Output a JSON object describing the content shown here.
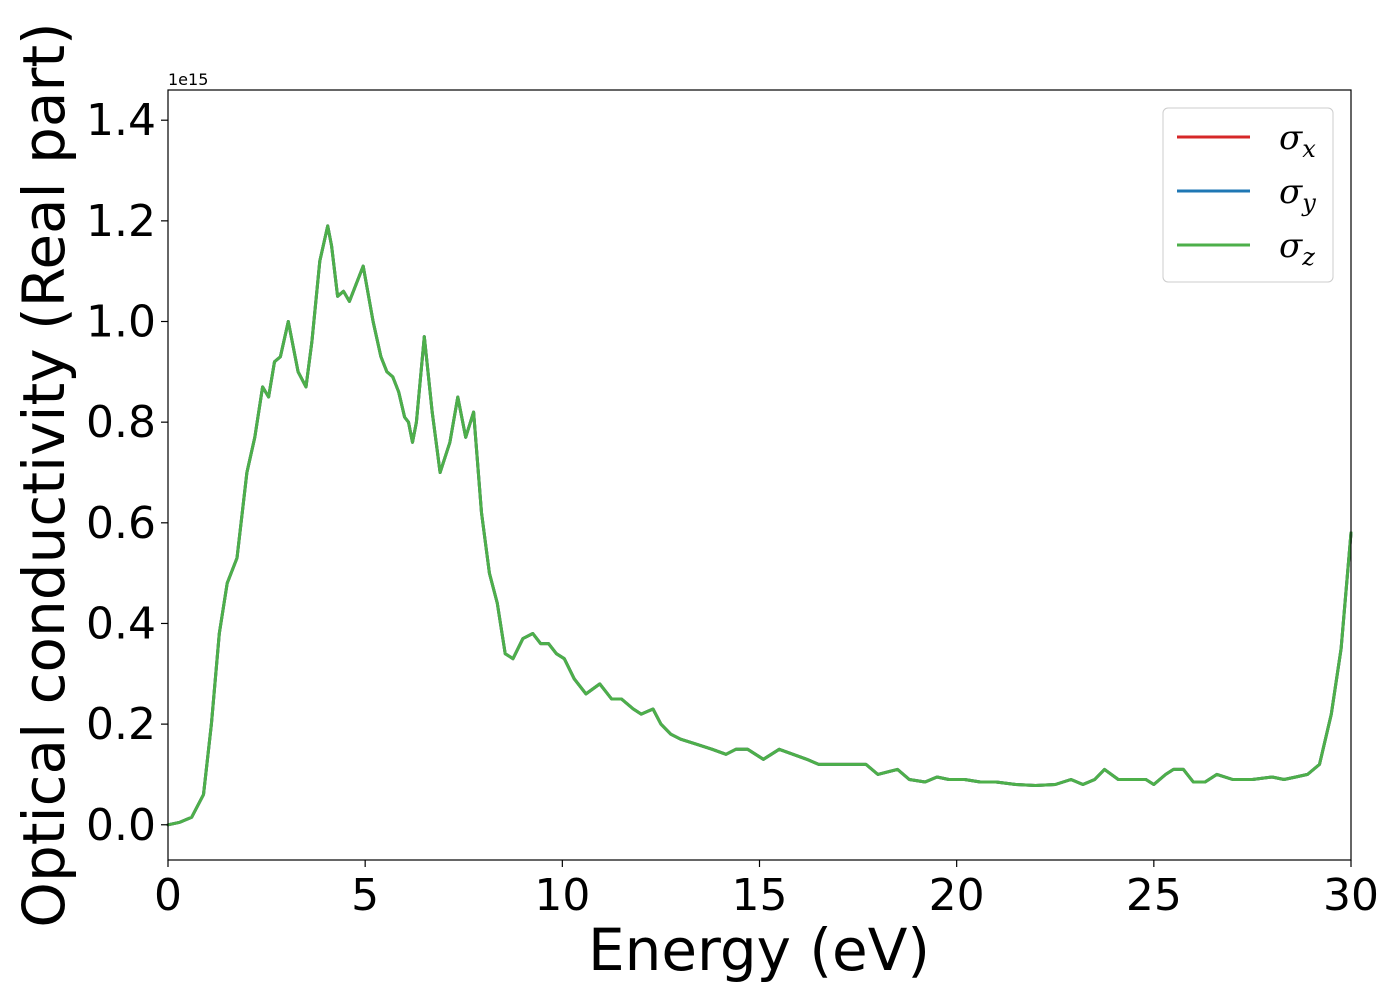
{
  "chart_data": {
    "type": "line",
    "title": "",
    "xlabel": "Energy (eV)",
    "ylabel": "Optical conductivity (Real part)",
    "y_offset_label": "1e15",
    "xlim": [
      0,
      30
    ],
    "ylim": [
      -0.07,
      1.46
    ],
    "y_multiplier": 1000000000000000.0,
    "x_ticks": [
      0,
      5,
      10,
      15,
      20,
      25,
      30
    ],
    "x_tick_labels": [
      "0",
      "5",
      "10",
      "15",
      "20",
      "25",
      "30"
    ],
    "y_ticks": [
      0.0,
      0.2,
      0.4,
      0.6,
      0.8,
      1.0,
      1.2,
      1.4
    ],
    "y_tick_labels": [
      "0.0",
      "0.2",
      "0.4",
      "0.6",
      "0.8",
      "1.0",
      "1.2",
      "1.4"
    ],
    "grid": false,
    "legend_position": "top-right",
    "x": [
      0,
      0.3,
      0.6,
      0.9,
      1.1,
      1.3,
      1.5,
      1.75,
      2.0,
      2.2,
      2.4,
      2.55,
      2.7,
      2.85,
      3.05,
      3.3,
      3.5,
      3.65,
      3.85,
      4.05,
      4.15,
      4.3,
      4.45,
      4.6,
      4.75,
      4.95,
      5.2,
      5.4,
      5.55,
      5.7,
      5.85,
      6.0,
      6.1,
      6.2,
      6.3,
      6.5,
      6.7,
      6.9,
      7.15,
      7.35,
      7.55,
      7.75,
      7.95,
      8.15,
      8.35,
      8.55,
      8.75,
      9.0,
      9.25,
      9.45,
      9.65,
      9.85,
      10.05,
      10.3,
      10.6,
      10.95,
      11.25,
      11.5,
      11.8,
      12.0,
      12.3,
      12.5,
      12.75,
      13.0,
      13.4,
      13.8,
      14.15,
      14.4,
      14.7,
      15.1,
      15.5,
      15.85,
      16.2,
      16.5,
      16.8,
      17.2,
      17.7,
      18.0,
      18.5,
      18.8,
      19.2,
      19.5,
      19.8,
      20.2,
      20.6,
      21.0,
      21.5,
      22.0,
      22.5,
      22.9,
      23.2,
      23.5,
      23.75,
      24.1,
      24.5,
      24.8,
      25.0,
      25.3,
      25.5,
      25.75,
      26.0,
      26.3,
      26.6,
      27.0,
      27.5,
      28.0,
      28.3,
      28.6,
      28.9,
      29.2,
      29.5,
      29.75,
      30.0
    ],
    "series": [
      {
        "name": "σx",
        "color": "#d62728",
        "values": [
          0.0,
          0.005,
          0.015,
          0.06,
          0.2,
          0.38,
          0.48,
          0.53,
          0.7,
          0.77,
          0.87,
          0.85,
          0.92,
          0.93,
          1.0,
          0.9,
          0.87,
          0.96,
          1.12,
          1.19,
          1.15,
          1.05,
          1.06,
          1.04,
          1.07,
          1.11,
          1.0,
          0.93,
          0.9,
          0.89,
          0.86,
          0.81,
          0.8,
          0.76,
          0.8,
          0.97,
          0.82,
          0.7,
          0.76,
          0.85,
          0.77,
          0.82,
          0.62,
          0.5,
          0.44,
          0.34,
          0.33,
          0.37,
          0.38,
          0.36,
          0.36,
          0.34,
          0.33,
          0.29,
          0.26,
          0.28,
          0.25,
          0.25,
          0.23,
          0.22,
          0.23,
          0.2,
          0.18,
          0.17,
          0.16,
          0.15,
          0.14,
          0.15,
          0.15,
          0.13,
          0.15,
          0.14,
          0.13,
          0.12,
          0.12,
          0.12,
          0.12,
          0.1,
          0.11,
          0.09,
          0.085,
          0.095,
          0.09,
          0.09,
          0.085,
          0.085,
          0.08,
          0.078,
          0.08,
          0.09,
          0.08,
          0.09,
          0.11,
          0.09,
          0.09,
          0.09,
          0.08,
          0.1,
          0.11,
          0.11,
          0.085,
          0.085,
          0.1,
          0.09,
          0.09,
          0.095,
          0.09,
          0.095,
          0.1,
          0.12,
          0.22,
          0.35,
          0.58
        ]
      },
      {
        "name": "σy",
        "color": "#1f77b4",
        "values": [
          0.0,
          0.005,
          0.015,
          0.06,
          0.2,
          0.38,
          0.48,
          0.53,
          0.7,
          0.77,
          0.87,
          0.85,
          0.92,
          0.93,
          1.0,
          0.9,
          0.87,
          0.96,
          1.12,
          1.19,
          1.15,
          1.05,
          1.06,
          1.04,
          1.07,
          1.11,
          1.0,
          0.93,
          0.9,
          0.89,
          0.86,
          0.81,
          0.8,
          0.76,
          0.8,
          0.97,
          0.82,
          0.7,
          0.76,
          0.85,
          0.77,
          0.82,
          0.62,
          0.5,
          0.44,
          0.34,
          0.33,
          0.37,
          0.38,
          0.36,
          0.36,
          0.34,
          0.33,
          0.29,
          0.26,
          0.28,
          0.25,
          0.25,
          0.23,
          0.22,
          0.23,
          0.2,
          0.18,
          0.17,
          0.16,
          0.15,
          0.14,
          0.15,
          0.15,
          0.13,
          0.15,
          0.14,
          0.13,
          0.12,
          0.12,
          0.12,
          0.12,
          0.1,
          0.11,
          0.09,
          0.085,
          0.095,
          0.09,
          0.09,
          0.085,
          0.085,
          0.08,
          0.078,
          0.08,
          0.09,
          0.08,
          0.09,
          0.11,
          0.09,
          0.09,
          0.09,
          0.08,
          0.1,
          0.11,
          0.11,
          0.085,
          0.085,
          0.1,
          0.09,
          0.09,
          0.095,
          0.09,
          0.095,
          0.1,
          0.12,
          0.22,
          0.35,
          0.58
        ]
      },
      {
        "name": "σz",
        "color": "#4daf4a",
        "values": [
          0.0,
          0.005,
          0.015,
          0.06,
          0.2,
          0.38,
          0.48,
          0.53,
          0.7,
          0.77,
          0.87,
          0.85,
          0.92,
          0.93,
          1.0,
          0.9,
          0.87,
          0.96,
          1.12,
          1.19,
          1.15,
          1.05,
          1.06,
          1.04,
          1.07,
          1.11,
          1.0,
          0.93,
          0.9,
          0.89,
          0.86,
          0.81,
          0.8,
          0.76,
          0.8,
          0.97,
          0.82,
          0.7,
          0.76,
          0.85,
          0.77,
          0.82,
          0.62,
          0.5,
          0.44,
          0.34,
          0.33,
          0.37,
          0.38,
          0.36,
          0.36,
          0.34,
          0.33,
          0.29,
          0.26,
          0.28,
          0.25,
          0.25,
          0.23,
          0.22,
          0.23,
          0.2,
          0.18,
          0.17,
          0.16,
          0.15,
          0.14,
          0.15,
          0.15,
          0.13,
          0.15,
          0.14,
          0.13,
          0.12,
          0.12,
          0.12,
          0.12,
          0.1,
          0.11,
          0.09,
          0.085,
          0.095,
          0.09,
          0.09,
          0.085,
          0.085,
          0.08,
          0.078,
          0.08,
          0.09,
          0.08,
          0.09,
          0.11,
          0.09,
          0.09,
          0.09,
          0.08,
          0.1,
          0.11,
          0.11,
          0.085,
          0.085,
          0.1,
          0.09,
          0.09,
          0.095,
          0.09,
          0.095,
          0.1,
          0.12,
          0.22,
          0.35,
          0.58
        ]
      }
    ],
    "legend": [
      {
        "symbol": "σ",
        "subscript": "x",
        "color": "#d62728"
      },
      {
        "symbol": "σ",
        "subscript": "y",
        "color": "#1f77b4"
      },
      {
        "symbol": "σ",
        "subscript": "z",
        "color": "#4daf4a"
      }
    ]
  }
}
